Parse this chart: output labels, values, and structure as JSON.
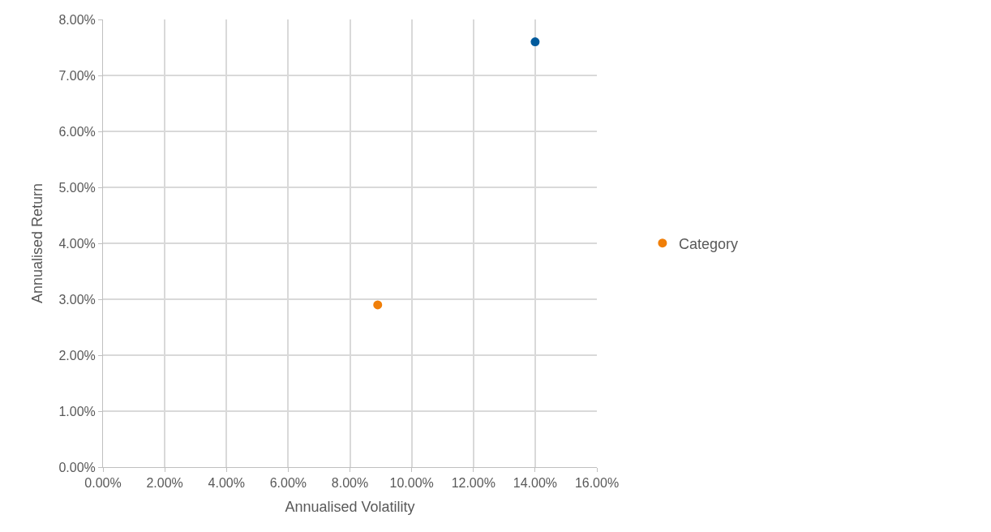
{
  "chart_data": {
    "type": "scatter",
    "xlabel": "Annualised Volatility",
    "ylabel": "Annualised Return",
    "series": [
      {
        "color": "#005a9c",
        "x": [
          14.0
        ],
        "values": [
          7.6
        ]
      },
      {
        "name": "Category",
        "color": "#f07f09",
        "x": [
          8.9
        ],
        "values": [
          2.9
        ]
      }
    ],
    "xlim": [
      0,
      16
    ],
    "ylim": [
      0,
      8
    ],
    "xticks": [
      {
        "value": 0,
        "label": "0.00%"
      },
      {
        "value": 2,
        "label": "2.00%"
      },
      {
        "value": 4,
        "label": "4.00%"
      },
      {
        "value": 6,
        "label": "6.00%"
      },
      {
        "value": 8,
        "label": "8.00%"
      },
      {
        "value": 10,
        "label": "10.00%"
      },
      {
        "value": 12,
        "label": "12.00%"
      },
      {
        "value": 14,
        "label": "14.00%"
      },
      {
        "value": 16,
        "label": "16.00%"
      }
    ],
    "yticks": [
      {
        "value": 0,
        "label": "0.00%"
      },
      {
        "value": 1,
        "label": "1.00%"
      },
      {
        "value": 2,
        "label": "2.00%"
      },
      {
        "value": 3,
        "label": "3.00%"
      },
      {
        "value": 4,
        "label": "4.00%"
      },
      {
        "value": 5,
        "label": "5.00%"
      },
      {
        "value": 6,
        "label": "6.00%"
      },
      {
        "value": 7,
        "label": "7.00%"
      },
      {
        "value": 8,
        "label": "8.00%"
      }
    ],
    "grid": true,
    "legend": "right",
    "marker": "circle"
  }
}
